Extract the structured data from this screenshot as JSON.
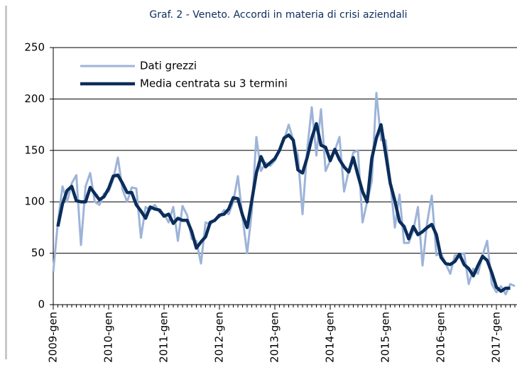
{
  "chart_data": {
    "type": "line",
    "title": "Graf. 2 - Veneto. Accordi in materia di crisi aziendali",
    "categories": [
      "2009-gen",
      null,
      null,
      null,
      null,
      null,
      null,
      null,
      null,
      null,
      null,
      null,
      "2010-gen",
      null,
      null,
      null,
      null,
      null,
      null,
      null,
      null,
      null,
      null,
      null,
      "2011-gen",
      null,
      null,
      null,
      null,
      null,
      null,
      null,
      null,
      null,
      null,
      null,
      "2012-gen",
      null,
      null,
      null,
      null,
      null,
      null,
      null,
      null,
      null,
      null,
      null,
      "2013-gen",
      null,
      null,
      null,
      null,
      null,
      null,
      null,
      null,
      null,
      null,
      null,
      "2014-gen",
      null,
      null,
      null,
      null,
      null,
      null,
      null,
      null,
      null,
      null,
      null,
      "2015-gen",
      null,
      null,
      null,
      null,
      null,
      null,
      null,
      null,
      null,
      null,
      null,
      "2016-gen",
      null,
      null,
      null,
      null,
      null,
      null,
      null,
      null,
      null,
      null,
      null,
      "2017-gen",
      null,
      null,
      null,
      null
    ],
    "series": [
      {
        "name": "Dati grezzi",
        "color": "#9db4d9",
        "values": [
          32,
          80,
          115,
          100,
          118,
          126,
          58,
          115,
          128,
          100,
          97,
          108,
          110,
          122,
          143,
          112,
          100,
          114,
          113,
          65,
          95,
          92,
          97,
          90,
          88,
          80,
          95,
          62,
          96,
          87,
          64,
          62,
          40,
          80,
          78,
          83,
          85,
          92,
          88,
          100,
          125,
          85,
          50,
          90,
          163,
          130,
          138,
          135,
          140,
          150,
          160,
          175,
          160,
          145,
          88,
          150,
          192,
          145,
          190,
          130,
          140,
          150,
          163,
          110,
          130,
          148,
          150,
          80,
          100,
          120,
          206,
          160,
          160,
          120,
          75,
          107,
          60,
          60,
          72,
          95,
          38,
          80,
          106,
          48,
          50,
          40,
          30,
          48,
          48,
          50,
          20,
          35,
          30,
          48,
          62,
          20,
          12,
          18,
          10,
          20,
          18
        ]
      },
      {
        "name": "Media centrata su 3 termini",
        "color": "#0b2d5b",
        "values": [
          null,
          76,
          98,
          111,
          115,
          101,
          100,
          100,
          114,
          108,
          102,
          105,
          113,
          125,
          126,
          118,
          109,
          109,
          97,
          91,
          84,
          95,
          93,
          92,
          86,
          88,
          79,
          84,
          82,
          82,
          71,
          55,
          61,
          66,
          80,
          82,
          87,
          88,
          93,
          104,
          103,
          87,
          75,
          101,
          128,
          144,
          134,
          138,
          142,
          150,
          162,
          165,
          160,
          131,
          128,
          143,
          162,
          176,
          155,
          153,
          140,
          151,
          141,
          134,
          129,
          143,
          126,
          110,
          100,
          142,
          162,
          175,
          147,
          118,
          101,
          81,
          76,
          64,
          76,
          68,
          71,
          75,
          78,
          68,
          46,
          40,
          39,
          42,
          49,
          39,
          35,
          28,
          38,
          47,
          43,
          31,
          17,
          13,
          16,
          16,
          null
        ]
      }
    ],
    "ylim": [
      0,
      250
    ],
    "yticks": [
      0,
      50,
      100,
      150,
      200,
      250
    ],
    "grid": true,
    "legend": "upper left"
  }
}
